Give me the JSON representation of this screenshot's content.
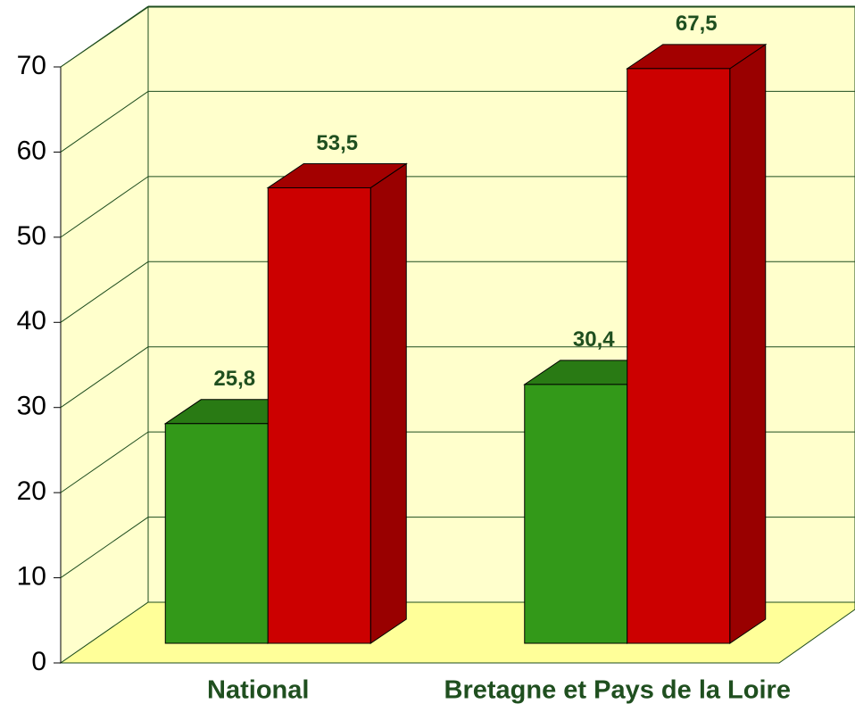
{
  "chart_data": {
    "type": "bar3d",
    "categories": [
      "National",
      "Bretagne et Pays de la Loire"
    ],
    "series": [
      {
        "color": "#339919",
        "values": [
          25.8,
          30.4
        ],
        "value_labels": [
          "25,8",
          "30,4"
        ]
      },
      {
        "color": "#cc0000",
        "values": [
          53.5,
          67.5
        ],
        "value_labels": [
          "53,5",
          "67,5"
        ]
      }
    ],
    "ylim": [
      0,
      70
    ],
    "yticks": [
      0,
      10,
      20,
      30,
      40,
      50,
      60,
      70
    ],
    "grid": true
  }
}
